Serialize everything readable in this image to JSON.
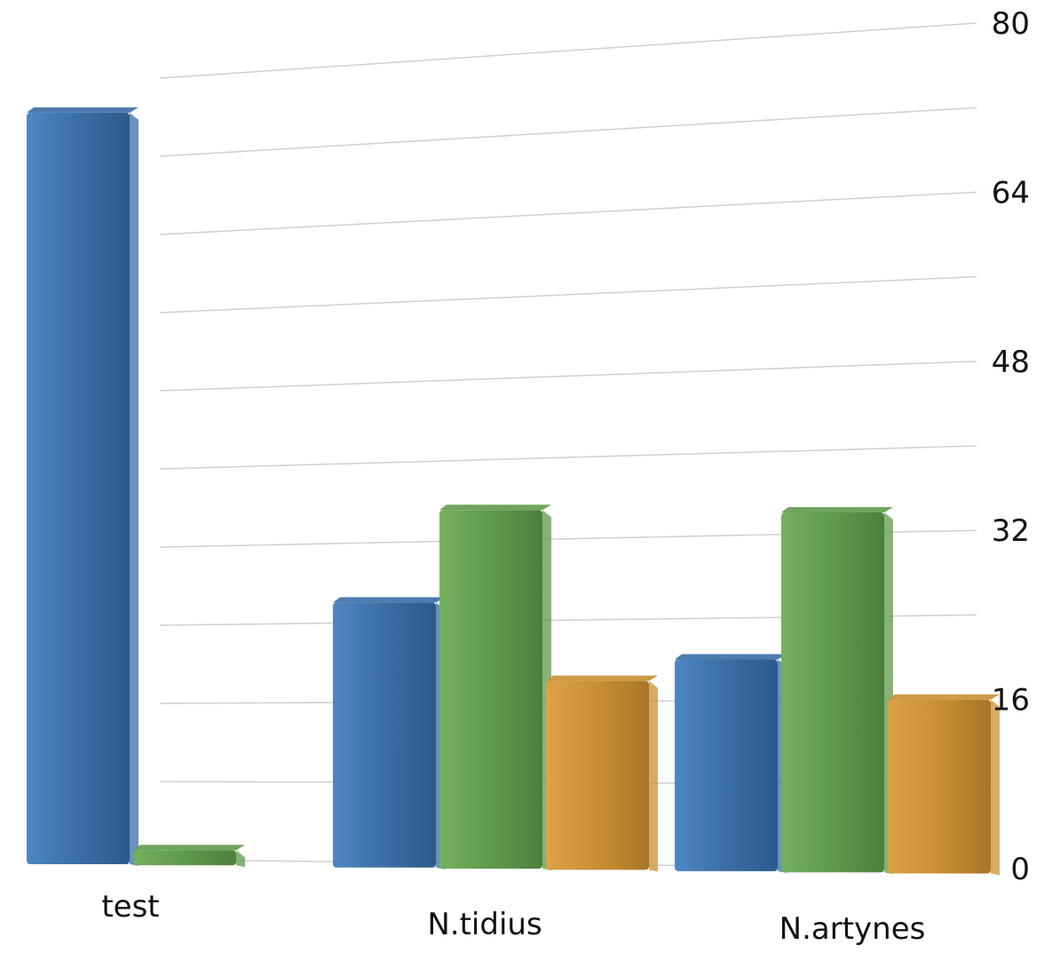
{
  "chart_data": {
    "type": "bar",
    "categories": [
      "test",
      "N.tidius",
      "N.artynes"
    ],
    "series": [
      {
        "values": [
          77,
          26,
          20
        ],
        "color": "#3a6ea5"
      },
      {
        "values": [
          1,
          35,
          34
        ],
        "color": "#5f9a4c"
      },
      {
        "values": [
          null,
          18,
          16
        ],
        "color": "#c98f33"
      }
    ],
    "y_ticks": [
      0,
      16,
      32,
      48,
      64,
      80
    ],
    "y_tick_labels": [
      "0",
      "16",
      "32",
      "48",
      "64",
      "80"
    ],
    "ylim": [
      0,
      80
    ],
    "y_axis_side": "right",
    "grid": true,
    "title": "",
    "xlabel": "",
    "ylabel": ""
  }
}
